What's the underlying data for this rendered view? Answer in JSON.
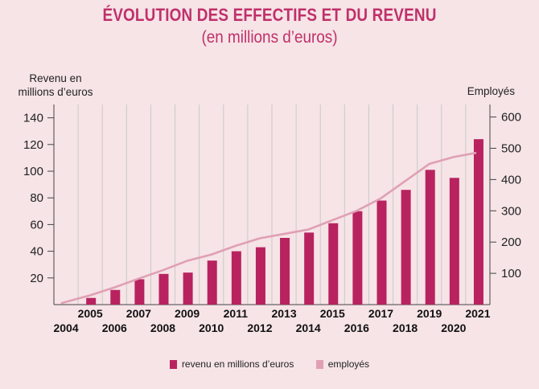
{
  "title": "ÉVOLUTION DES EFFECTIFS ET DU REVENU",
  "subtitle": "(en millions d’euros)",
  "chart_data": {
    "type": "bar",
    "categories": [
      "2004",
      "2005",
      "2006",
      "2007",
      "2008",
      "2009",
      "2010",
      "2011",
      "2012",
      "2013",
      "2014",
      "2015",
      "2016",
      "2017",
      "2018",
      "2019",
      "2020",
      "2021"
    ],
    "series": [
      {
        "name": "revenu en millions d’euros",
        "type": "bar",
        "axis": "left",
        "color": "#b8235f",
        "values": [
          0,
          5,
          11,
          19,
          23,
          24,
          33,
          40,
          43,
          50,
          54,
          61,
          70,
          78,
          86,
          101,
          95,
          124
        ]
      },
      {
        "name": "employés",
        "type": "line",
        "axis": "right",
        "color": "#e0a0b4",
        "values": [
          5,
          30,
          55,
          83,
          110,
          140,
          160,
          188,
          212,
          226,
          240,
          270,
          300,
          340,
          395,
          450,
          472,
          485
        ]
      }
    ],
    "y_left": {
      "label": "Revenu en millions d’euros",
      "ticks": [
        20,
        40,
        60,
        80,
        100,
        120,
        140
      ],
      "range": [
        0,
        150
      ]
    },
    "y_right": {
      "label": "Employés",
      "ticks": [
        100,
        200,
        300,
        400,
        500,
        600
      ],
      "range": [
        0,
        640
      ]
    },
    "x_labels_top": [
      "2005",
      "2007",
      "2009",
      "2011",
      "2013",
      "2015",
      "2017",
      "2019",
      "2021"
    ],
    "x_labels_bottom": [
      "2004",
      "2006",
      "2008",
      "2010",
      "2012",
      "2014",
      "2016",
      "2018",
      "2020"
    ],
    "grid": "vertical",
    "legend_position": "bottom"
  }
}
